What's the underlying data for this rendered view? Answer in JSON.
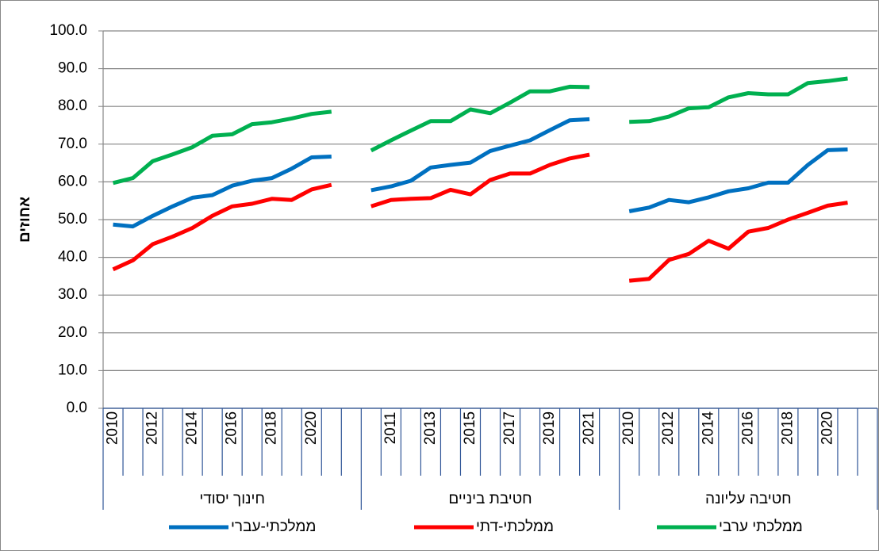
{
  "chart_data": {
    "type": "line",
    "y_label": "אחוזים",
    "ylim": [
      0,
      100
    ],
    "yticks": [
      {
        "value": 0,
        "label": "0.0"
      },
      {
        "value": 10,
        "label": "10.0"
      },
      {
        "value": 20,
        "label": "20.0"
      },
      {
        "value": 30,
        "label": "30.0"
      },
      {
        "value": 40,
        "label": "40.0"
      },
      {
        "value": 50,
        "label": "50.0"
      },
      {
        "value": 60,
        "label": "60.0"
      },
      {
        "value": 70,
        "label": "70.0"
      },
      {
        "value": 80,
        "label": "80.0"
      },
      {
        "value": 90,
        "label": "90.0"
      },
      {
        "value": 100,
        "label": "100.0"
      }
    ],
    "grid": true,
    "legend": "bottom",
    "groups": [
      {
        "label": "חינוך יסודי",
        "categories": [
          "2010",
          null,
          "2012",
          null,
          "2014",
          null,
          "2016",
          null,
          "2018",
          null,
          "2020",
          null,
          null
        ]
      },
      {
        "label": "חטיבת ביניים",
        "categories": [
          null,
          "2011",
          null,
          "2013",
          null,
          "2015",
          null,
          "2017",
          null,
          "2019",
          null,
          "2021",
          null
        ]
      },
      {
        "label": "חטיבה עליונה",
        "categories": [
          "2010",
          null,
          "2012",
          null,
          "2014",
          null,
          "2016",
          null,
          "2018",
          null,
          "2020",
          null,
          null
        ]
      }
    ],
    "series": [
      {
        "name": "ממלכתי-עברי",
        "color": "#0070c0",
        "values": [
          48.7,
          48.2,
          51,
          53.5,
          55.8,
          56.5,
          59,
          60.3,
          61,
          63.5,
          66.5,
          66.7,
          null,
          57.8,
          58.8,
          60.3,
          63.8,
          64.5,
          65.1,
          68.2,
          69.6,
          71,
          73.7,
          76.3,
          76.6,
          null,
          52.2,
          53.2,
          55.2,
          54.6,
          55.9,
          57.5,
          58.3,
          59.8,
          59.8,
          64.5,
          68.4,
          68.6,
          null
        ]
      },
      {
        "name": "ממלכתי-דתי",
        "color": "#ff0000",
        "values": [
          36.8,
          39.2,
          43.5,
          45.5,
          47.8,
          51,
          53.5,
          54.2,
          55.5,
          55.2,
          58,
          59.2,
          null,
          53.5,
          55.2,
          55.5,
          55.7,
          57.9,
          56.7,
          60.5,
          62.2,
          62.2,
          64.5,
          66.2,
          67.2,
          null,
          33.8,
          34.3,
          39.3,
          40.9,
          44.4,
          42.3,
          46.8,
          47.8,
          50,
          51.8,
          53.7,
          54.5,
          null
        ]
      },
      {
        "name": "ממלכתי ערבי",
        "color": "#00b050",
        "values": [
          59.7,
          61,
          65.5,
          67.3,
          69.2,
          72.2,
          72.6,
          75.3,
          75.8,
          76.8,
          78,
          78.6,
          null,
          68.3,
          71,
          73.6,
          76.1,
          76.1,
          79.2,
          78.2,
          81,
          84,
          84,
          85.2,
          85.1,
          null,
          75.9,
          76.1,
          77.3,
          79.5,
          79.8,
          82.4,
          83.5,
          83.2,
          83.2,
          86.2,
          86.7,
          87.4,
          null
        ]
      }
    ]
  }
}
